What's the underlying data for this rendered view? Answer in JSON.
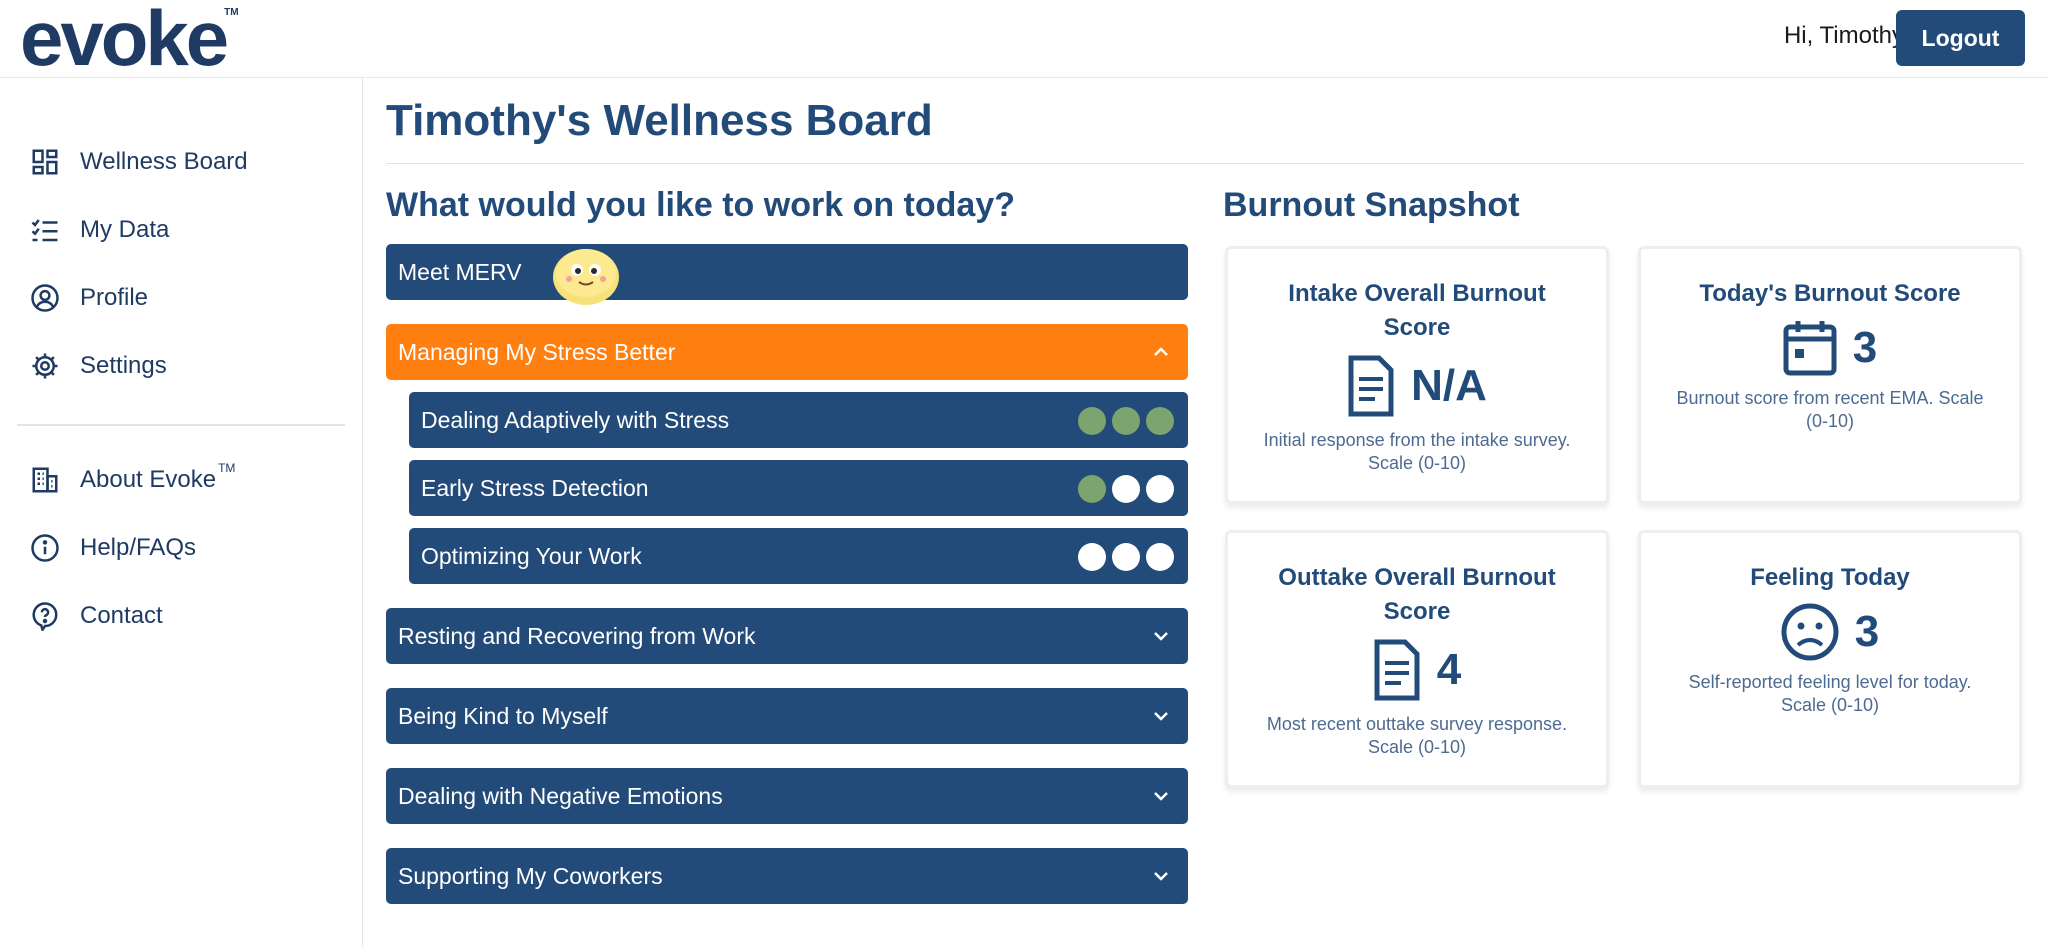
{
  "brand": {
    "logo_text": "evoke",
    "logo_mark": "TM"
  },
  "header": {
    "greeting": "Hi, Timothy",
    "logout_label": "Logout"
  },
  "sidebar": {
    "items": [
      {
        "label": "Wellness Board",
        "icon": "dashboard-icon"
      },
      {
        "label": "My Data",
        "icon": "checklist-icon"
      },
      {
        "label": "Profile",
        "icon": "user-circle-icon"
      },
      {
        "label": "Settings",
        "icon": "gear-icon"
      },
      {
        "label": "About Evoke",
        "icon": "building-icon",
        "sup": "TM"
      },
      {
        "label": "Help/FAQs",
        "icon": "info-icon"
      },
      {
        "label": "Contact",
        "icon": "question-bubble-icon"
      }
    ]
  },
  "main": {
    "title": "Timothy's Wellness Board",
    "work_heading": "What would you like to work on today?",
    "snapshot_heading": "Burnout Snapshot",
    "modules": [
      {
        "label": "Meet MERV",
        "state": "plain"
      },
      {
        "label": "Managing My Stress Better",
        "state": "expanded",
        "color": "#ff7f11"
      },
      {
        "label": "Resting and Recovering from Work",
        "state": "collapsed"
      },
      {
        "label": "Being Kind to Myself",
        "state": "collapsed"
      },
      {
        "label": "Dealing with Negative Emotions",
        "state": "collapsed"
      },
      {
        "label": "Supporting My Coworkers",
        "state": "collapsed"
      }
    ],
    "submodules": [
      {
        "label": "Dealing Adaptively with Stress",
        "progress": [
          true,
          true,
          true
        ]
      },
      {
        "label": "Early Stress Detection",
        "progress": [
          true,
          false,
          false
        ]
      },
      {
        "label": "Optimizing Your Work",
        "progress": [
          false,
          false,
          false
        ]
      }
    ],
    "progress_colors": {
      "done": "#7ba46e",
      "todo": "#ffffff"
    },
    "cards": [
      {
        "title_line1": "Intake Overall Burnout",
        "title_line2": "Score",
        "value": "N/A",
        "icon": "document-icon",
        "desc_line1": "Initial response from the intake survey.",
        "desc_line2": "Scale (0-10)"
      },
      {
        "title_line1": "Today's Burnout Score",
        "title_line2": "",
        "value": "3",
        "icon": "calendar-icon",
        "desc_line1": "Burnout score from recent EMA. Scale",
        "desc_line2": "(0-10)"
      },
      {
        "title_line1": "Outtake Overall Burnout",
        "title_line2": "Score",
        "value": "4",
        "icon": "document-icon",
        "desc_line1": "Most recent outtake survey response.",
        "desc_line2": "Scale (0-10)"
      },
      {
        "title_line1": "Feeling Today",
        "title_line2": "",
        "value": "3",
        "icon": "sad-face-icon",
        "desc_line1": "Self-reported feeling level for today.",
        "desc_line2": "Scale (0-10)"
      }
    ]
  }
}
